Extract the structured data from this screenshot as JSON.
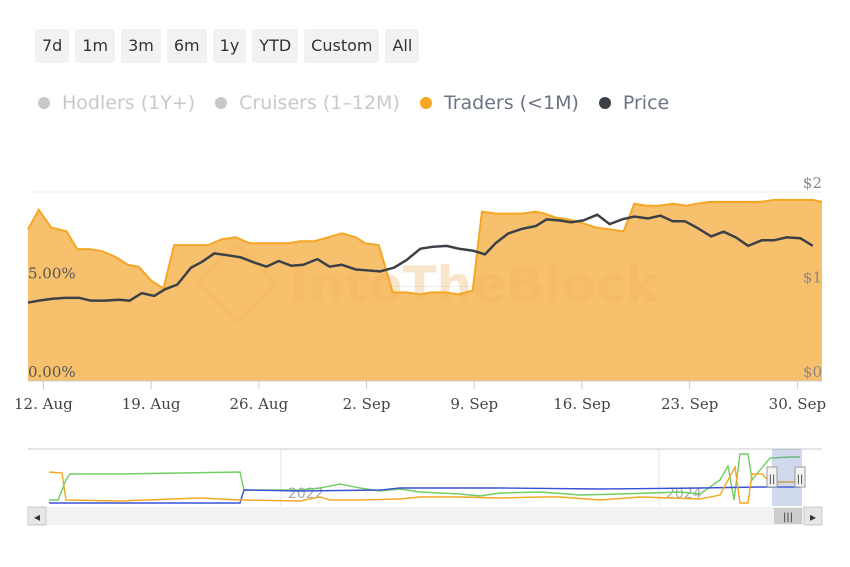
{
  "range_selector": {
    "buttons": [
      "7d",
      "1m",
      "3m",
      "6m",
      "1y",
      "YTD",
      "Custom",
      "All"
    ]
  },
  "legend": {
    "items": [
      {
        "label": "Hodlers (1Y+)",
        "active": false,
        "color": "#c8c8c8"
      },
      {
        "label": "Cruisers (1–12M)",
        "active": false,
        "color": "#c8c8c8"
      },
      {
        "label": "Traders (<1M)",
        "active": true,
        "color": "#f5a623"
      },
      {
        "label": "Price",
        "active": true,
        "color": "#3c4148"
      }
    ]
  },
  "watermark": "IntoTheBlock",
  "chart_data": {
    "type": "area",
    "x_ticks": [
      "12. Aug",
      "19. Aug",
      "26. Aug",
      "2. Sep",
      "9. Sep",
      "16. Sep",
      "23. Sep",
      "30. Sep"
    ],
    "x_tick_days": [
      0,
      7,
      14,
      21,
      28,
      35,
      42,
      49
    ],
    "y_left": {
      "ticks": [
        "0.00%",
        "5.00%"
      ],
      "range": [
        0,
        9.6
      ],
      "unit": "%"
    },
    "y_right": {
      "ticks": [
        "$0",
        "$1",
        "$2"
      ],
      "range": [
        0,
        2
      ],
      "unit": "$"
    },
    "series": [
      {
        "name": "Traders (<1M)",
        "axis": "left",
        "color": "#f5a623",
        "fill": "#f6b554",
        "x": [
          -1,
          -0.3,
          0.5,
          1.5,
          2.2,
          3,
          3.8,
          4.7,
          5.5,
          6.2,
          7,
          7.8,
          8.5,
          9.4,
          10.1,
          10.7,
          11.6,
          12.5,
          13.4,
          14.3,
          15,
          15.9,
          16.7,
          17.6,
          18.5,
          19.4,
          20.3,
          20.9,
          21.8,
          22.7,
          23.6,
          24.5,
          25.2,
          26.1,
          27,
          27.9,
          28.5,
          29.4,
          30.2,
          31.1,
          32,
          32.6,
          33.3,
          34.2,
          35.1,
          35.9,
          36.8,
          37.7,
          38.4,
          39.2,
          40,
          40.9,
          41.8,
          42.4,
          43.3,
          44.2,
          45,
          45.8,
          46.6,
          47.5,
          48.4,
          49.3,
          50,
          50.6
        ],
        "values": [
          7.7,
          8.7,
          7.8,
          7.6,
          6.7,
          6.7,
          6.6,
          6.3,
          5.9,
          5.8,
          5.1,
          4.7,
          6.9,
          6.9,
          6.9,
          6.9,
          7.2,
          7.3,
          7.0,
          7.0,
          7.0,
          7.0,
          7.1,
          7.1,
          7.3,
          7.5,
          7.3,
          7.0,
          6.9,
          4.5,
          4.5,
          4.4,
          4.5,
          4.5,
          4.4,
          4.6,
          8.6,
          8.5,
          8.5,
          8.5,
          8.6,
          8.5,
          8.3,
          8.2,
          8.0,
          7.8,
          7.7,
          7.6,
          9.0,
          8.9,
          8.9,
          9.0,
          8.9,
          9.0,
          9.1,
          9.1,
          9.1,
          9.1,
          9.1,
          9.2,
          9.2,
          9.2,
          9.2,
          9.1
        ],
        "fill_opacity": 0.85
      },
      {
        "name": "Price",
        "axis": "right",
        "color": "#3c4148",
        "x": [
          -1,
          -0.3,
          0.6,
          1.4,
          2.3,
          3.1,
          4,
          4.9,
          5.6,
          6.4,
          7.2,
          7.9,
          8.7,
          9.6,
          10.3,
          11.1,
          12,
          12.8,
          13.6,
          14.5,
          15.3,
          16.1,
          16.9,
          17.8,
          18.6,
          19.4,
          20.3,
          21.1,
          21.9,
          22.8,
          23.6,
          24.5,
          25.3,
          26.2,
          27,
          27.9,
          28.7,
          29.4,
          30.2,
          31.1,
          32,
          32.7,
          33.5,
          34.3,
          35.1,
          36,
          36.8,
          37.6,
          38.4,
          39.3,
          40.1,
          40.9,
          41.7,
          42.5,
          43.4,
          44.2,
          45,
          45.8,
          46.7,
          47.5,
          48.3,
          49.2,
          50
        ],
        "values": [
          0.83,
          0.85,
          0.87,
          0.88,
          0.88,
          0.85,
          0.85,
          0.86,
          0.85,
          0.93,
          0.9,
          0.97,
          1.02,
          1.2,
          1.26,
          1.35,
          1.33,
          1.31,
          1.26,
          1.21,
          1.27,
          1.22,
          1.23,
          1.29,
          1.21,
          1.23,
          1.18,
          1.17,
          1.16,
          1.2,
          1.28,
          1.4,
          1.42,
          1.43,
          1.4,
          1.38,
          1.34,
          1.46,
          1.56,
          1.61,
          1.64,
          1.71,
          1.7,
          1.68,
          1.7,
          1.76,
          1.66,
          1.71,
          1.74,
          1.72,
          1.75,
          1.69,
          1.69,
          1.62,
          1.53,
          1.58,
          1.52,
          1.43,
          1.49,
          1.49,
          1.52,
          1.51,
          1.43
        ],
        "line_width": 2.5
      }
    ],
    "grid": true
  },
  "navigator": {
    "labels": [
      "2022",
      "2024"
    ],
    "series": [
      {
        "name": "Hodlers (1Y+)",
        "color": "#6fcf60"
      },
      {
        "name": "Cruisers (1–12M)",
        "color": "#3a52d6"
      },
      {
        "name": "Traders (<1M)",
        "color": "#f5a623"
      }
    ],
    "scroll_left": "◂",
    "scroll_right": "▸",
    "scroll_grip": "|||",
    "handle_grip": "||"
  }
}
